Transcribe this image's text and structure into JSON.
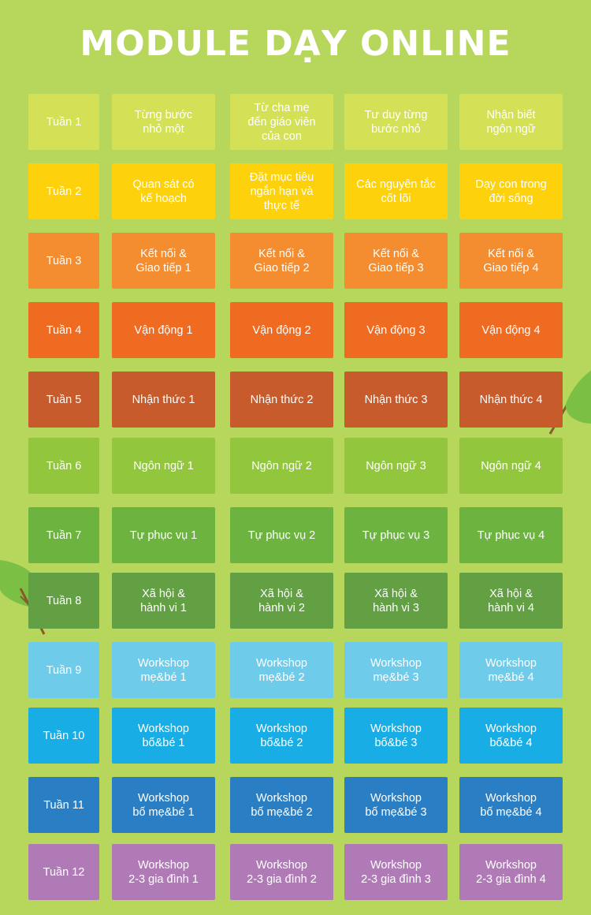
{
  "title": "MODULE DẠY ONLINE",
  "rows": [
    {
      "color": "#d4e157",
      "week": "Tuần 1",
      "modules": [
        "Từng bước\nnhỏ một",
        "Từ cha mẹ\nđến giáo viên\ncủa con",
        "Tư duy từng\nbước nhỏ",
        "Nhận biết\nngôn ngữ"
      ]
    },
    {
      "color": "#fdd20c",
      "week": "Tuần 2",
      "modules": [
        "Quan sát có\nkế hoạch",
        "Đặt mục tiêu\nngắn hạn và\nthực tế",
        "Các nguyên tắc\ncốt lõi",
        "Dạy con trong\nđời sống"
      ]
    },
    {
      "color": "#f48d30",
      "week": "Tuần 3",
      "modules": [
        "Kết nối &\nGiao tiếp 1",
        "Kết nối &\nGiao tiếp 2",
        "Kết nối &\nGiao tiếp 3",
        "Kết nối &\nGiao tiếp 4"
      ]
    },
    {
      "color": "#f06b22",
      "week": "Tuần 4",
      "modules": [
        "Vận động 1",
        "Vận động 2",
        "Vận động 3",
        "Vận động 4"
      ]
    },
    {
      "color": "#c85b2c",
      "week": "Tuần 5",
      "modules": [
        "Nhận thức 1",
        "Nhận thức 2",
        "Nhận thức 3",
        "Nhận thức 4"
      ]
    },
    {
      "color": "#92c73d",
      "week": "Tuần 6",
      "modules": [
        "Ngôn ngữ 1",
        "Ngôn ngữ 2",
        "Ngôn ngữ 3",
        "Ngôn ngữ 4"
      ]
    },
    {
      "color": "#6cb33f",
      "week": "Tuần 7",
      "modules": [
        "Tự phục vụ 1",
        "Tự phục vụ 2",
        "Tự phục vụ 3",
        "Tự phục vụ 4"
      ]
    },
    {
      "color": "#62a043",
      "week": "Tuần 8",
      "modules": [
        "Xã hội &\nhành vi 1",
        "Xã hội &\nhành vi 2",
        "Xã hội &\nhành vi 3",
        "Xã hội &\nhành vi 4"
      ]
    },
    {
      "color": "#6fcbea",
      "week": "Tuần 9",
      "modules": [
        "Workshop\nmẹ&bé 1",
        "Workshop\nmẹ&bé 2",
        "Workshop\nmẹ&bé 3",
        "Workshop\nmẹ&bé 4"
      ]
    },
    {
      "color": "#18ade4",
      "week": "Tuần 10",
      "modules": [
        "Workshop\nbố&bé 1",
        "Workshop\nbố&bé 2",
        "Workshop\nbố&bé 3",
        "Workshop\nbố&bé 4"
      ]
    },
    {
      "color": "#2a7fc4",
      "week": "Tuần 11",
      "modules": [
        "Workshop\nbố mẹ&bé 1",
        "Workshop\nbố mẹ&bé 2",
        "Workshop\nbố mẹ&bé 3",
        "Workshop\nbố mẹ&bé 4"
      ]
    },
    {
      "color": "#b07ab7",
      "week": "Tuần 12",
      "modules": [
        "Workshop\n2-3 gia đình 1",
        "Workshop\n2-3 gia đình 2",
        "Workshop\n2-3 gia đình 3",
        "Workshop\n2-3 gia đình 4"
      ]
    }
  ]
}
